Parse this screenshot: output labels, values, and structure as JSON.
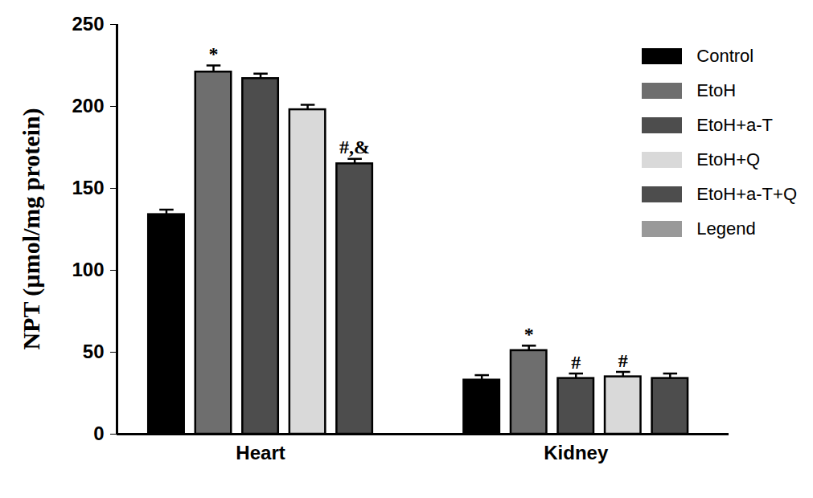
{
  "chart_data": {
    "type": "bar",
    "y_label": "NPT (µmol/mg protein)",
    "categories": [
      "Heart",
      "Kidney"
    ],
    "series": [
      {
        "name": "Control",
        "color": "#000000",
        "values": [
          134,
          33
        ],
        "errors": [
          3,
          3
        ],
        "annotations": [
          null,
          null
        ]
      },
      {
        "name": "EtoH",
        "color": "#6e6e6e",
        "values": [
          221,
          51
        ],
        "errors": [
          4,
          3
        ],
        "annotations": [
          "*",
          "*"
        ]
      },
      {
        "name": "EtoH+a-T",
        "color": "#4d4d4d",
        "values": [
          217,
          34
        ],
        "errors": [
          3,
          3
        ],
        "annotations": [
          null,
          "#"
        ]
      },
      {
        "name": "EtoH+Q",
        "color": "#d9d9d9",
        "values": [
          198,
          35
        ],
        "errors": [
          3,
          3
        ],
        "annotations": [
          null,
          "#"
        ]
      },
      {
        "name": "EtoH+a-T+Q",
        "color": "#4d4d4d",
        "values": [
          165,
          34
        ],
        "errors": [
          3,
          3
        ],
        "annotations": [
          "#,&",
          null
        ]
      },
      {
        "name": "Legend",
        "color": "#999999",
        "values": [
          null,
          null
        ]
      }
    ],
    "ylim": [
      0,
      250
    ],
    "yticks": [
      0,
      50,
      100,
      150,
      200,
      250
    ],
    "grid": false,
    "legend": "top-right"
  }
}
